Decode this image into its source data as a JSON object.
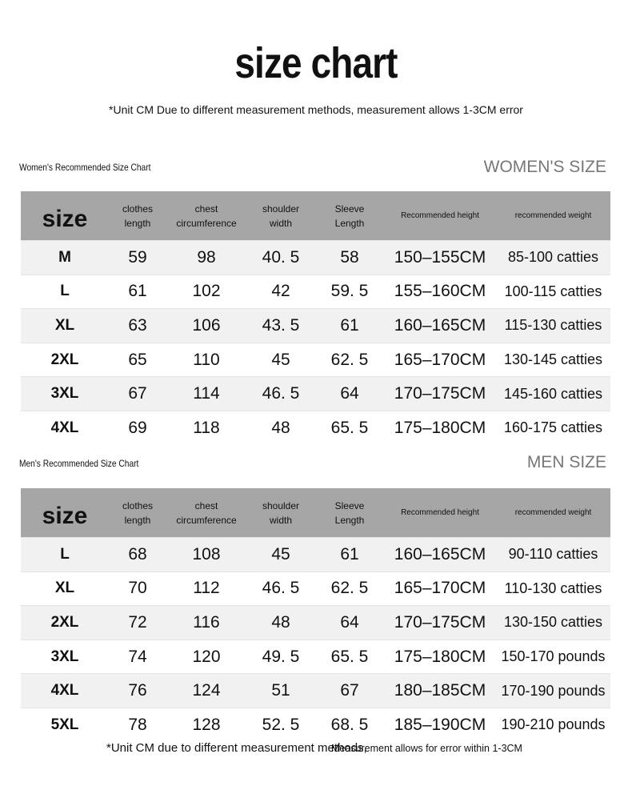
{
  "title": "size chart",
  "note": "*Unit CM Due to different measurement methods, measurement allows 1-3CM error",
  "columns": [
    "size",
    "clothes length",
    "chest circumference",
    "shoulder width",
    "Sleeve Length",
    "Recommended height",
    "recommended weight"
  ],
  "women": {
    "label": "Women's Recommended Size Chart",
    "heading": "WOMEN'S SIZE",
    "rows": [
      [
        "M",
        "59",
        "98",
        "40. 5",
        "58",
        "150–155CM",
        "85-100 catties"
      ],
      [
        "L",
        "61",
        "102",
        "42",
        "59. 5",
        "155–160CM",
        "100-115 catties"
      ],
      [
        "XL",
        "63",
        "106",
        "43. 5",
        "61",
        "160–165CM",
        "115-130 catties"
      ],
      [
        "2XL",
        "65",
        "110",
        "45",
        "62. 5",
        "165–170CM",
        "130-145 catties"
      ],
      [
        "3XL",
        "67",
        "114",
        "46. 5",
        "64",
        "170–175CM",
        "145-160 catties"
      ],
      [
        "4XL",
        "69",
        "118",
        "48",
        "65. 5",
        "175–180CM",
        "160-175 catties"
      ]
    ]
  },
  "men": {
    "label": "Men's Recommended Size Chart",
    "heading": "MEN SIZE",
    "rows": [
      [
        "L",
        "68",
        "108",
        "45",
        "61",
        "160–165CM",
        "90-110 catties"
      ],
      [
        "XL",
        "70",
        "112",
        "46. 5",
        "62. 5",
        "165–170CM",
        "110-130 catties"
      ],
      [
        "2XL",
        "72",
        "116",
        "48",
        "64",
        "170–175CM",
        "130-150 catties"
      ],
      [
        "3XL",
        "74",
        "120",
        "49. 5",
        "65. 5",
        "175–180CM",
        "150-170 pounds"
      ],
      [
        "4XL",
        "76",
        "124",
        "51",
        "67",
        "180–185CM",
        "170-190 pounds"
      ],
      [
        "5XL",
        "78",
        "128",
        "52. 5",
        "68. 5",
        "185–190CM",
        "190-210 pounds"
      ]
    ]
  },
  "footer": {
    "part1": "*Unit CM due to different measurement methods,",
    "part2": "Measurement allows for error within 1-3CM"
  },
  "colors": {
    "header_bg": "#a6a6a6",
    "alt_row": "#f1f1f1"
  }
}
